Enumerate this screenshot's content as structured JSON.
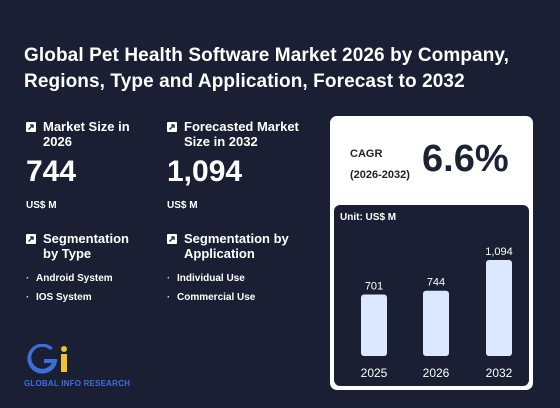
{
  "title": "Global Pet Health Software Market 2026 by Company, Regions, Type and Application, Forecast to 2032",
  "market_size": {
    "label": "Market Size in 2026",
    "value": "744",
    "unit": "US$ M"
  },
  "forecast": {
    "label": "Forecasted Market Size in 2032",
    "value": "1,094",
    "unit": "US$ M"
  },
  "seg_type": {
    "label": "Segmentation by Type",
    "items": [
      "Android System",
      "IOS System"
    ]
  },
  "seg_app": {
    "label": "Segmentation by Application",
    "items": [
      "Individual Use",
      "Commercial Use"
    ]
  },
  "cagr": {
    "label_line1": "CAGR",
    "label_line2": "(2026-2032)",
    "value": "6.6%"
  },
  "logo_text": "GLOBAL INFO RESEARCH",
  "colors": {
    "background": "#1b1f33",
    "bar": "#dce8ff",
    "logo_blue": "#3b6fd8",
    "logo_yellow": "#f2c12e"
  },
  "chart_data": {
    "type": "bar",
    "unit_label": "Unit: US$ M",
    "categories": [
      "2025",
      "2026",
      "2032"
    ],
    "values": [
      701,
      744,
      1094
    ],
    "data_labels": [
      "701",
      "744",
      "1,094"
    ]
  }
}
